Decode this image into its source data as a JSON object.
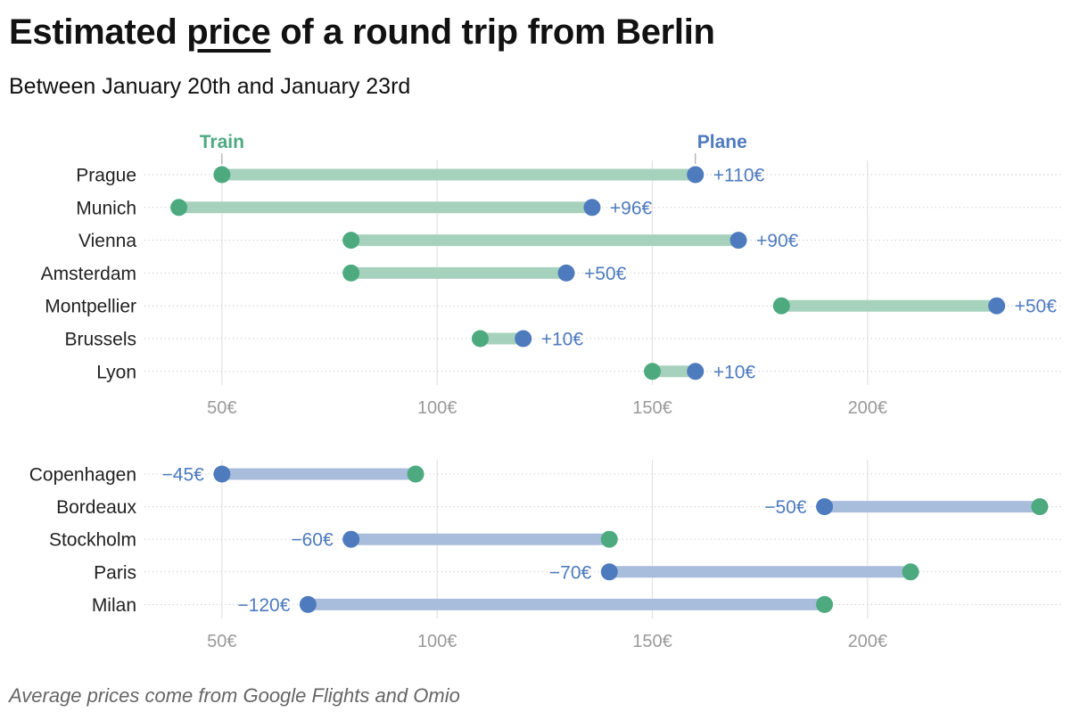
{
  "title": {
    "before": "Estimated ",
    "highlight": "price",
    "after": " of a round trip from Berlin"
  },
  "subtitle": "Between January 20th and January 23rd",
  "footnote": "Average prices come from Google Flights and Omio",
  "colors": {
    "train": "#4daa7f",
    "plane": "#4e7bbd",
    "bar_top": "#a6d1bd",
    "bar_bottom": "#a8bcdb",
    "grid": "#e2e2e2",
    "row_line": "#d0d0d0"
  },
  "chart_data": [
    {
      "type": "dumbbell",
      "legend": {
        "train_label": "Train",
        "plane_label": "Plane"
      },
      "x_ticks": [
        50,
        100,
        150,
        200
      ],
      "x_tick_labels": [
        "50€",
        "100€",
        "150€",
        "200€"
      ],
      "xlim": [
        32,
        245
      ],
      "rows": [
        {
          "city": "Prague",
          "train": 50,
          "plane": 160,
          "diff": "+110€"
        },
        {
          "city": "Munich",
          "train": 40,
          "plane": 136,
          "diff": "+96€"
        },
        {
          "city": "Vienna",
          "train": 80,
          "plane": 170,
          "diff": "+90€"
        },
        {
          "city": "Amsterdam",
          "train": 80,
          "plane": 130,
          "diff": "+50€"
        },
        {
          "city": "Montpellier",
          "train": 180,
          "plane": 230,
          "diff": "+50€"
        },
        {
          "city": "Brussels",
          "train": 110,
          "plane": 120,
          "diff": "+10€"
        },
        {
          "city": "Lyon",
          "train": 150,
          "plane": 160,
          "diff": "+10€"
        }
      ]
    },
    {
      "type": "dumbbell",
      "x_ticks": [
        50,
        100,
        150,
        200
      ],
      "x_tick_labels": [
        "50€",
        "100€",
        "150€",
        "200€"
      ],
      "xlim": [
        32,
        245
      ],
      "rows": [
        {
          "city": "Copenhagen",
          "train": 95,
          "plane": 50,
          "diff": "−45€"
        },
        {
          "city": "Bordeaux",
          "train": 240,
          "plane": 190,
          "diff": "−50€"
        },
        {
          "city": "Stockholm",
          "train": 140,
          "plane": 80,
          "diff": "−60€"
        },
        {
          "city": "Paris",
          "train": 210,
          "plane": 140,
          "diff": "−70€"
        },
        {
          "city": "Milan",
          "train": 190,
          "plane": 70,
          "diff": "−120€"
        }
      ]
    }
  ]
}
